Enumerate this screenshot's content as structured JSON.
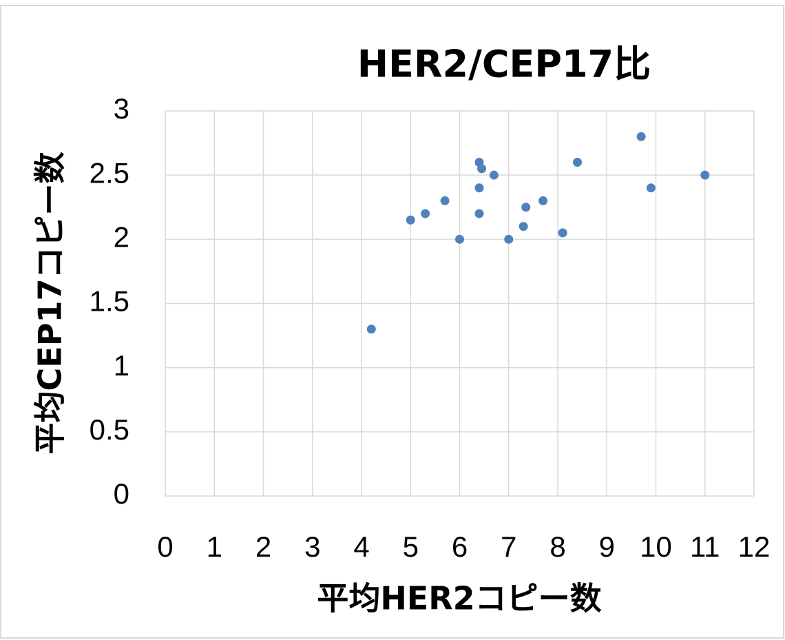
{
  "chart_data": {
    "type": "scatter",
    "title": "HER2/CEP17比",
    "x_label": "平均HER2コピー数",
    "y_label": "平均CEP17コピー数",
    "series": [
      {
        "name": "HER2/CEP17比",
        "color": "#4f81bd",
        "x": [
          4.2,
          5.0,
          5.3,
          5.7,
          6.0,
          6.4,
          6.45,
          6.4,
          6.4,
          6.7,
          7.0,
          7.3,
          7.35,
          7.7,
          8.1,
          8.4,
          9.7,
          9.9,
          11.0
        ],
        "values": [
          1.3,
          2.15,
          2.2,
          2.3,
          2.0,
          2.6,
          2.55,
          2.4,
          2.2,
          2.5,
          2.0,
          2.1,
          2.25,
          2.3,
          2.05,
          2.6,
          2.8,
          2.4,
          2.5
        ]
      }
    ],
    "xlim": [
      0,
      12
    ],
    "xticks": [
      0,
      1,
      2,
      3,
      4,
      5,
      6,
      7,
      8,
      9,
      10,
      11,
      12
    ],
    "ylim": [
      0,
      3
    ],
    "yticks": [
      0,
      0.5,
      1,
      1.5,
      2,
      2.5,
      3
    ],
    "grid": true
  }
}
